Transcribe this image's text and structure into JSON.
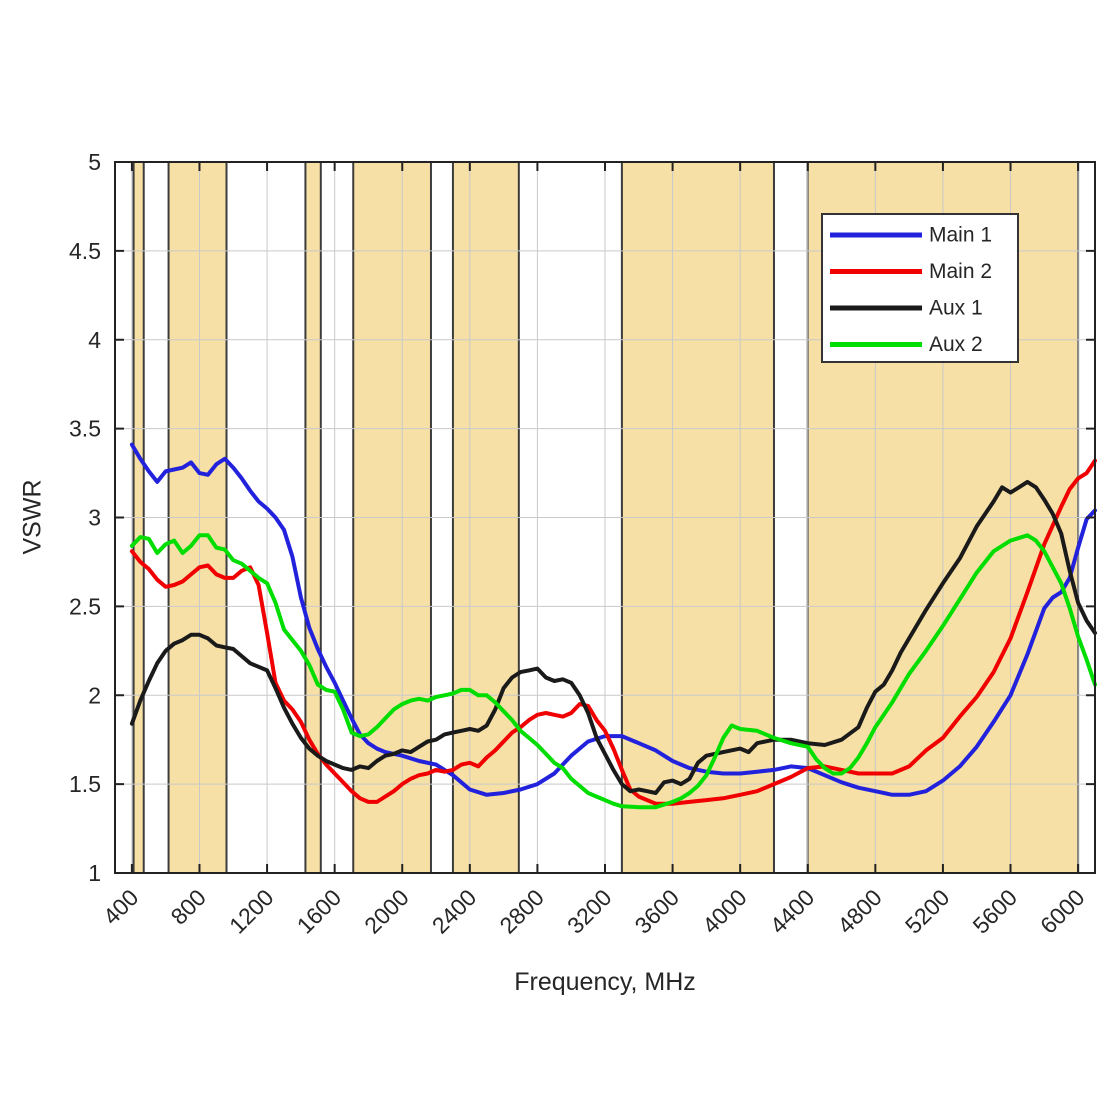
{
  "chart_data": {
    "type": "line",
    "title": "",
    "xlabel": "Frequency, MHz",
    "ylabel": "VSWR",
    "xlim": [
      300,
      6100
    ],
    "ylim": [
      1,
      5
    ],
    "xticks": [
      400,
      800,
      1200,
      1600,
      2000,
      2400,
      2800,
      3200,
      3600,
      4000,
      4400,
      4800,
      5200,
      5600,
      6000
    ],
    "yticks": [
      1,
      1.5,
      2,
      2.5,
      3,
      3.5,
      4,
      4.5,
      5
    ],
    "grid": true,
    "colors": {
      "grid": "#c9c9c9",
      "spine": "#222222",
      "tick_text": "#262626",
      "band_fill": "#F7E0A5",
      "band_edge": "#3C3C3C",
      "legend_border": "#333333",
      "legend_bg": "#ffffff"
    },
    "shaded_bands": {
      "ranges_mhz": [
        [
          410,
          470
        ],
        [
          617,
          960
        ],
        [
          1427,
          1518
        ],
        [
          1710,
          2170
        ],
        [
          2300,
          2690
        ],
        [
          3300,
          4200
        ],
        [
          4400,
          6000
        ]
      ]
    },
    "legend": {
      "position": "top-right",
      "entries": [
        "Main 1",
        "Main 2",
        "Aux 1",
        "Aux 2"
      ]
    },
    "series": [
      {
        "name": "Main 1",
        "color": "#2222DD",
        "x": [
          400,
          450,
          500,
          550,
          600,
          650,
          700,
          750,
          800,
          850,
          900,
          950,
          1000,
          1050,
          1100,
          1150,
          1200,
          1250,
          1300,
          1350,
          1400,
          1450,
          1500,
          1550,
          1600,
          1650,
          1700,
          1750,
          1800,
          1850,
          1900,
          2000,
          2100,
          2200,
          2300,
          2400,
          2500,
          2600,
          2700,
          2800,
          2900,
          3000,
          3100,
          3200,
          3300,
          3400,
          3500,
          3600,
          3700,
          3800,
          3900,
          4000,
          4100,
          4200,
          4300,
          4400,
          4500,
          4600,
          4700,
          4800,
          4900,
          5000,
          5100,
          5200,
          5300,
          5400,
          5500,
          5600,
          5700,
          5800,
          5850,
          5900,
          5950,
          6000,
          6050,
          6100
        ],
        "y": [
          3.41,
          3.33,
          3.26,
          3.2,
          3.26,
          3.27,
          3.28,
          3.31,
          3.25,
          3.24,
          3.3,
          3.33,
          3.28,
          3.22,
          3.15,
          3.09,
          3.05,
          3.0,
          2.93,
          2.78,
          2.55,
          2.38,
          2.26,
          2.16,
          2.07,
          1.97,
          1.87,
          1.78,
          1.73,
          1.7,
          1.68,
          1.66,
          1.63,
          1.61,
          1.55,
          1.47,
          1.44,
          1.45,
          1.47,
          1.5,
          1.56,
          1.66,
          1.74,
          1.77,
          1.77,
          1.73,
          1.69,
          1.63,
          1.59,
          1.57,
          1.56,
          1.56,
          1.57,
          1.58,
          1.6,
          1.59,
          1.55,
          1.51,
          1.48,
          1.46,
          1.44,
          1.44,
          1.46,
          1.52,
          1.6,
          1.71,
          1.85,
          2.0,
          2.23,
          2.49,
          2.55,
          2.58,
          2.66,
          2.83,
          2.99,
          3.04
        ]
      },
      {
        "name": "Main 2",
        "color": "#F00000",
        "x": [
          400,
          450,
          500,
          550,
          600,
          650,
          700,
          750,
          800,
          850,
          900,
          950,
          1000,
          1050,
          1100,
          1150,
          1200,
          1250,
          1300,
          1350,
          1400,
          1450,
          1500,
          1550,
          1600,
          1650,
          1700,
          1750,
          1800,
          1850,
          1900,
          1950,
          2000,
          2050,
          2100,
          2150,
          2200,
          2250,
          2300,
          2350,
          2400,
          2450,
          2500,
          2550,
          2600,
          2650,
          2700,
          2750,
          2800,
          2850,
          2900,
          2950,
          3000,
          3050,
          3100,
          3150,
          3200,
          3250,
          3300,
          3350,
          3400,
          3500,
          3600,
          3700,
          3800,
          3900,
          4000,
          4100,
          4200,
          4300,
          4400,
          4500,
          4600,
          4700,
          4800,
          4900,
          5000,
          5100,
          5200,
          5300,
          5400,
          5500,
          5600,
          5700,
          5800,
          5900,
          5950,
          6000,
          6050,
          6100
        ],
        "y": [
          2.81,
          2.75,
          2.71,
          2.65,
          2.61,
          2.62,
          2.64,
          2.68,
          2.72,
          2.73,
          2.68,
          2.66,
          2.66,
          2.7,
          2.72,
          2.62,
          2.35,
          2.07,
          1.97,
          1.92,
          1.85,
          1.75,
          1.67,
          1.61,
          1.56,
          1.51,
          1.46,
          1.42,
          1.4,
          1.4,
          1.43,
          1.46,
          1.5,
          1.53,
          1.55,
          1.56,
          1.58,
          1.57,
          1.58,
          1.61,
          1.62,
          1.6,
          1.65,
          1.69,
          1.74,
          1.79,
          1.82,
          1.86,
          1.89,
          1.9,
          1.89,
          1.88,
          1.9,
          1.95,
          1.94,
          1.86,
          1.8,
          1.7,
          1.58,
          1.47,
          1.43,
          1.39,
          1.39,
          1.4,
          1.41,
          1.42,
          1.44,
          1.46,
          1.5,
          1.54,
          1.59,
          1.6,
          1.58,
          1.56,
          1.56,
          1.56,
          1.6,
          1.69,
          1.76,
          1.88,
          1.99,
          2.13,
          2.32,
          2.58,
          2.85,
          3.06,
          3.16,
          3.22,
          3.25,
          3.32
        ]
      },
      {
        "name": "Aux 1",
        "color": "#1A1A1A",
        "x": [
          400,
          450,
          500,
          550,
          600,
          650,
          700,
          750,
          800,
          850,
          900,
          950,
          1000,
          1050,
          1100,
          1150,
          1200,
          1250,
          1300,
          1350,
          1400,
          1450,
          1500,
          1550,
          1600,
          1650,
          1700,
          1750,
          1800,
          1850,
          1900,
          1950,
          2000,
          2050,
          2100,
          2150,
          2200,
          2250,
          2300,
          2350,
          2400,
          2450,
          2500,
          2550,
          2600,
          2650,
          2700,
          2750,
          2800,
          2850,
          2900,
          2950,
          3000,
          3050,
          3100,
          3150,
          3200,
          3250,
          3300,
          3350,
          3400,
          3450,
          3500,
          3550,
          3600,
          3650,
          3700,
          3750,
          3800,
          3900,
          4000,
          4050,
          4100,
          4200,
          4300,
          4400,
          4500,
          4600,
          4700,
          4750,
          4800,
          4850,
          4900,
          4950,
          5000,
          5100,
          5200,
          5300,
          5400,
          5500,
          5550,
          5600,
          5650,
          5700,
          5750,
          5800,
          5850,
          5900,
          5950,
          6000,
          6050,
          6100
        ],
        "y": [
          1.84,
          1.97,
          2.08,
          2.18,
          2.25,
          2.29,
          2.31,
          2.34,
          2.34,
          2.32,
          2.28,
          2.27,
          2.26,
          2.22,
          2.18,
          2.16,
          2.14,
          2.04,
          1.93,
          1.84,
          1.76,
          1.7,
          1.66,
          1.63,
          1.61,
          1.59,
          1.58,
          1.6,
          1.59,
          1.63,
          1.66,
          1.67,
          1.69,
          1.68,
          1.71,
          1.74,
          1.75,
          1.78,
          1.79,
          1.8,
          1.81,
          1.8,
          1.83,
          1.92,
          2.04,
          2.1,
          2.13,
          2.14,
          2.15,
          2.1,
          2.08,
          2.09,
          2.07,
          2.0,
          1.9,
          1.76,
          1.67,
          1.58,
          1.5,
          1.46,
          1.47,
          1.46,
          1.45,
          1.51,
          1.52,
          1.5,
          1.53,
          1.62,
          1.66,
          1.68,
          1.7,
          1.68,
          1.73,
          1.75,
          1.75,
          1.73,
          1.72,
          1.75,
          1.82,
          1.93,
          2.02,
          2.06,
          2.14,
          2.24,
          2.32,
          2.48,
          2.63,
          2.77,
          2.95,
          3.09,
          3.17,
          3.14,
          3.17,
          3.2,
          3.17,
          3.1,
          3.02,
          2.91,
          2.7,
          2.52,
          2.42,
          2.35
        ]
      },
      {
        "name": "Aux 2",
        "color": "#00DD00",
        "x": [
          400,
          450,
          500,
          550,
          600,
          650,
          700,
          750,
          800,
          850,
          900,
          950,
          1000,
          1050,
          1100,
          1150,
          1200,
          1250,
          1300,
          1350,
          1400,
          1450,
          1500,
          1550,
          1600,
          1650,
          1700,
          1750,
          1800,
          1850,
          1900,
          1950,
          2000,
          2050,
          2100,
          2150,
          2200,
          2250,
          2300,
          2350,
          2400,
          2450,
          2500,
          2550,
          2600,
          2650,
          2700,
          2750,
          2800,
          2850,
          2900,
          2950,
          3000,
          3050,
          3100,
          3150,
          3200,
          3250,
          3300,
          3400,
          3500,
          3600,
          3650,
          3700,
          3750,
          3800,
          3850,
          3900,
          3950,
          4000,
          4100,
          4200,
          4300,
          4400,
          4450,
          4500,
          4550,
          4600,
          4650,
          4700,
          4750,
          4800,
          4900,
          5000,
          5100,
          5200,
          5300,
          5400,
          5500,
          5600,
          5700,
          5750,
          5800,
          5900,
          5950,
          6000,
          6050,
          6100
        ],
        "y": [
          2.84,
          2.89,
          2.88,
          2.8,
          2.85,
          2.87,
          2.8,
          2.84,
          2.9,
          2.9,
          2.83,
          2.82,
          2.76,
          2.74,
          2.7,
          2.66,
          2.63,
          2.52,
          2.37,
          2.31,
          2.25,
          2.17,
          2.06,
          2.03,
          2.02,
          1.92,
          1.79,
          1.77,
          1.78,
          1.82,
          1.87,
          1.92,
          1.95,
          1.97,
          1.98,
          1.97,
          1.99,
          2.0,
          2.01,
          2.03,
          2.03,
          2.0,
          2.0,
          1.96,
          1.91,
          1.86,
          1.8,
          1.76,
          1.72,
          1.67,
          1.62,
          1.59,
          1.53,
          1.49,
          1.45,
          1.43,
          1.41,
          1.39,
          1.375,
          1.37,
          1.37,
          1.4,
          1.42,
          1.45,
          1.49,
          1.55,
          1.65,
          1.76,
          1.83,
          1.81,
          1.8,
          1.76,
          1.73,
          1.71,
          1.64,
          1.59,
          1.56,
          1.56,
          1.59,
          1.65,
          1.73,
          1.82,
          1.96,
          2.12,
          2.25,
          2.39,
          2.54,
          2.69,
          2.81,
          2.87,
          2.9,
          2.87,
          2.81,
          2.63,
          2.49,
          2.33,
          2.2,
          2.06
        ]
      }
    ]
  }
}
